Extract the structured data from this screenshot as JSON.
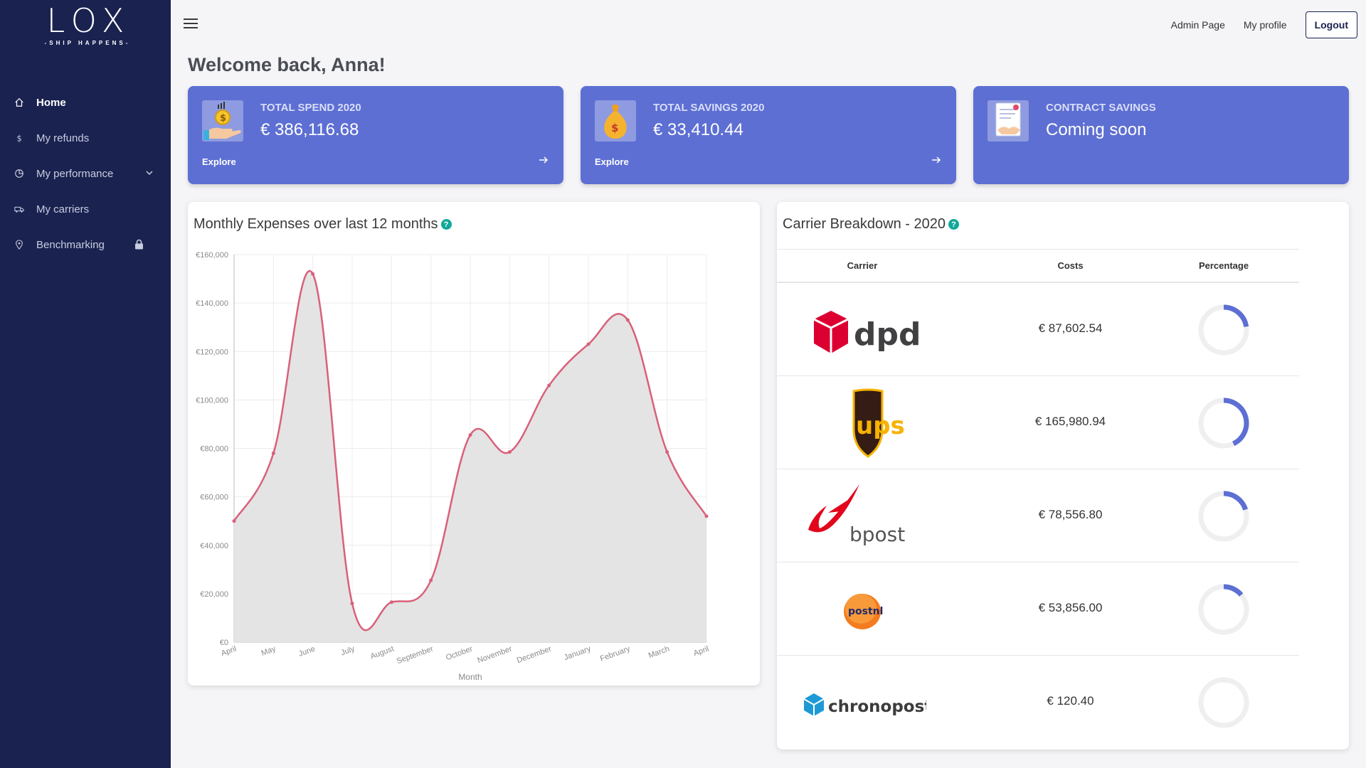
{
  "brand": {
    "name": "LOX",
    "tagline": "-SHIP HAPPENS-"
  },
  "sidebar": {
    "items": [
      {
        "label": "Home",
        "icon": "home-icon",
        "active": true
      },
      {
        "label": "My refunds",
        "icon": "dollar-icon"
      },
      {
        "label": "My performance",
        "icon": "pie-chart-icon",
        "expandable": true
      },
      {
        "label": "My carriers",
        "icon": "truck-icon"
      },
      {
        "label": "Benchmarking",
        "icon": "map-pin-icon",
        "locked": true
      }
    ]
  },
  "header": {
    "admin_link": "Admin Page",
    "profile_link": "My profile",
    "logout_label": "Logout"
  },
  "welcome": "Welcome back, Anna!",
  "cards": [
    {
      "title": "TOTAL SPEND 2020",
      "value": "€ 386,116.68",
      "explore": "Explore",
      "icon": "money-hand-icon"
    },
    {
      "title": "TOTAL SAVINGS 2020",
      "value": "€ 33,410.44",
      "explore": "Explore",
      "icon": "money-bag-icon"
    },
    {
      "title": "CONTRACT SAVINGS",
      "value": "Coming soon",
      "icon": "contract-icon"
    }
  ],
  "expenses_panel": {
    "title": "Monthly Expenses over last 12 months",
    "help": "?"
  },
  "carrier_panel": {
    "title": "Carrier Breakdown - 2020",
    "help": "?",
    "columns": [
      "Carrier",
      "Costs",
      "Percentage"
    ],
    "rows": [
      {
        "carrier": "dpd",
        "cost": "€ 87,602.54",
        "share": 0.227
      },
      {
        "carrier": "ups",
        "cost": "€ 165,980.94",
        "share": 0.43
      },
      {
        "carrier": "bpost",
        "cost": "€ 78,556.80",
        "share": 0.203
      },
      {
        "carrier": "postnl",
        "cost": "€ 53,856.00",
        "share": 0.14
      },
      {
        "carrier": "chronopost",
        "cost": "€ 120.40",
        "share": 0.0003
      }
    ],
    "accent": "#5d6fd3"
  },
  "chart_data": {
    "type": "area",
    "xlabel": "Month",
    "ylabel": "",
    "categories": [
      "April",
      "May",
      "June",
      "July",
      "August",
      "September",
      "October",
      "November",
      "December",
      "January",
      "February",
      "March",
      "April"
    ],
    "series": [
      {
        "values": [
          50000,
          78000,
          152000,
          16000,
          16500,
          25500,
          85500,
          78500,
          106000,
          123000,
          133000,
          78500,
          52000
        ]
      }
    ],
    "yticks": [
      "€0",
      "€20,000",
      "€40,000",
      "€60,000",
      "€80,000",
      "€100,000",
      "€120,000",
      "€140,000",
      "€160,000"
    ],
    "ylim": [
      0,
      160000
    ],
    "grid": true,
    "colors": {
      "line": "#d9607a",
      "fill": "#e4e4e4"
    }
  }
}
